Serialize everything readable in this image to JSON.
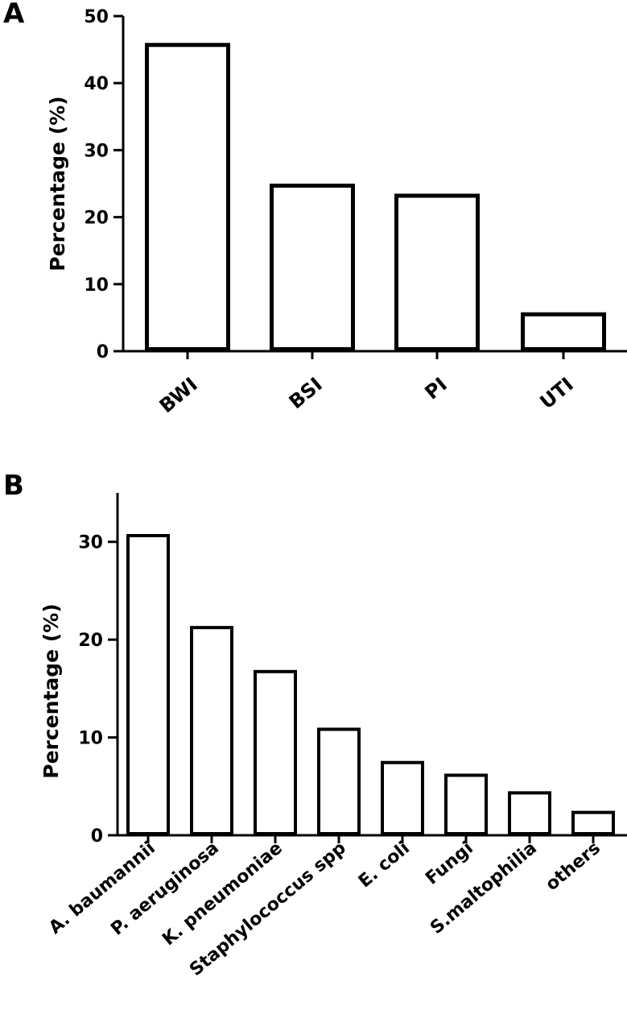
{
  "chart_data": [
    {
      "type": "bar",
      "panel": "A",
      "categories": [
        "BWI",
        "BSI",
        "PI",
        "UTI"
      ],
      "values": [
        46,
        25,
        23.5,
        5.8
      ],
      "ylabel": "Percentage (%)",
      "xlabel": "",
      "ylim": [
        0,
        50
      ],
      "yticks": [
        0,
        10,
        20,
        30,
        40,
        50
      ],
      "grid": false,
      "legend": "none",
      "colors": {
        "fill": "#ffffff",
        "stroke": "#000000"
      }
    },
    {
      "type": "bar",
      "panel": "B",
      "categories": [
        "A. baumannii",
        "P. aeruginosa",
        "K. pneumoniae",
        "Staphylococcus spp",
        "E. coli",
        "Fungi",
        "S.maltophilia",
        "others"
      ],
      "values": [
        30.8,
        21.4,
        16.9,
        11.0,
        7.6,
        6.3,
        4.5,
        2.5
      ],
      "ylabel": "Percentage (%)",
      "xlabel": "",
      "ylim": [
        0,
        35
      ],
      "yticks": [
        0,
        10,
        20,
        30
      ],
      "grid": false,
      "legend": "none",
      "colors": {
        "fill": "#ffffff",
        "stroke": "#000000"
      }
    }
  ]
}
